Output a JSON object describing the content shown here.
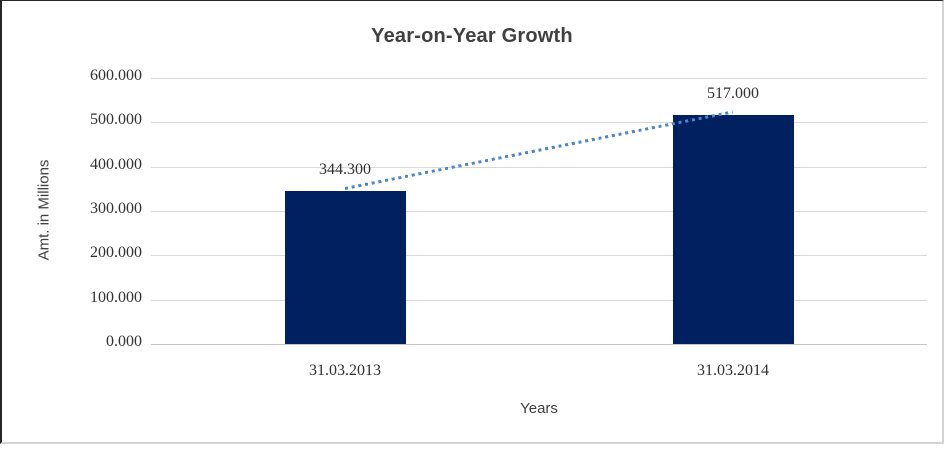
{
  "chart_data": {
    "type": "bar",
    "title": "Year-on-Year Growth",
    "xlabel": "Years",
    "ylabel": "Amt. in Millions",
    "categories": [
      "31.03.2013",
      "31.03.2014"
    ],
    "values": [
      344.3,
      517.0
    ],
    "data_labels": [
      "344.300",
      "517.000"
    ],
    "y_ticks": [
      {
        "value": 0,
        "label": "0.000"
      },
      {
        "value": 100,
        "label": "100.000"
      },
      {
        "value": 200,
        "label": "200.000"
      },
      {
        "value": 300,
        "label": "300.000"
      },
      {
        "value": 400,
        "label": "400.000"
      },
      {
        "value": 500,
        "label": "500.000"
      },
      {
        "value": 600,
        "label": "600.000"
      }
    ],
    "ylim": [
      0,
      600
    ],
    "grid": true,
    "legend": "none",
    "trendline": {
      "style": "dotted",
      "from_value": 344.3,
      "to_value": 517.0
    },
    "colors": {
      "bar": "#002060",
      "trendline": "#4a86c8",
      "gridline": "#d9d9d9",
      "baseline": "#c6c6c6",
      "text": "#303030",
      "title_text": "#404040"
    }
  }
}
